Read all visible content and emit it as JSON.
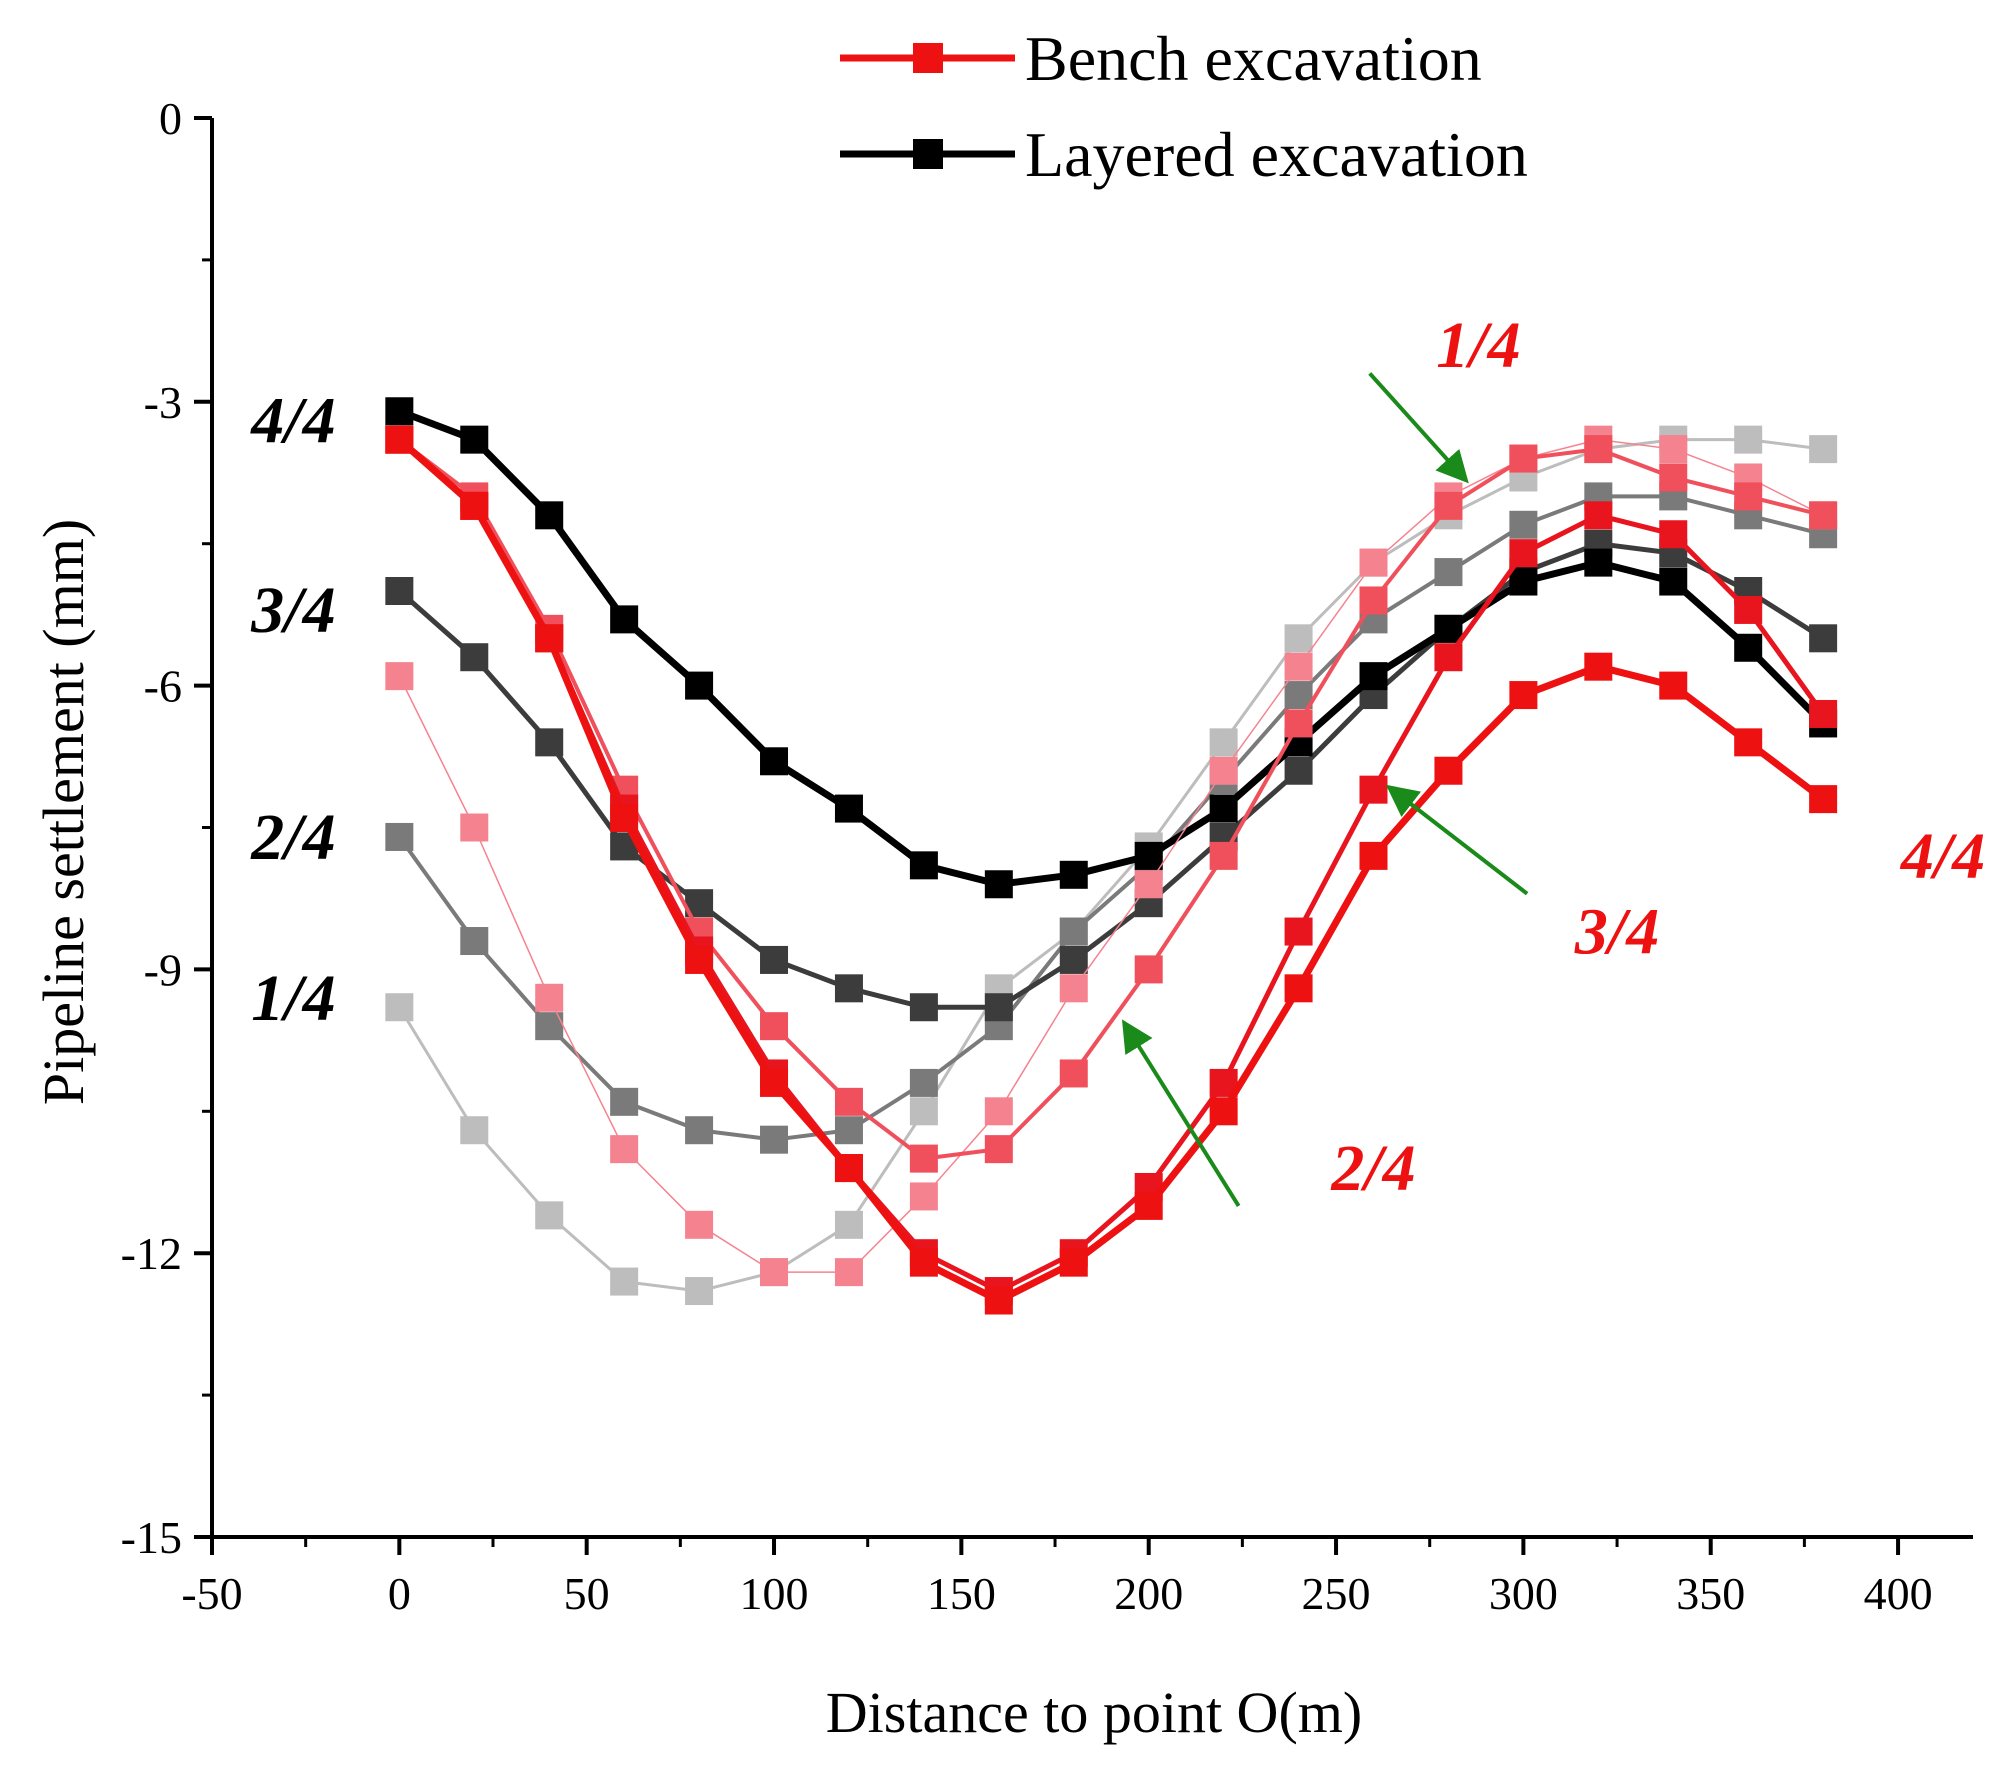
{
  "chart_data": {
    "type": "line",
    "xlabel": "Distance to point O(m)",
    "ylabel": "Pipeline settlement (mm)",
    "xlim": [
      -50,
      420
    ],
    "ylim": [
      -15,
      0
    ],
    "xticks": [
      -50,
      0,
      50,
      100,
      150,
      200,
      250,
      300,
      350,
      400
    ],
    "yticks": [
      0,
      -3,
      -6,
      -9,
      -12,
      -15
    ],
    "x": [
      0,
      20,
      40,
      60,
      80,
      100,
      120,
      140,
      160,
      180,
      200,
      220,
      240,
      260,
      280,
      300,
      320,
      340,
      360,
      380
    ],
    "legend": {
      "placement": "top-right",
      "entries": [
        {
          "label": "Bench excavation",
          "color": "#ee1111"
        },
        {
          "label": "Layered excavation",
          "color": "#000000"
        }
      ]
    },
    "series": [
      {
        "group": "Layered excavation",
        "stage": "1/4",
        "color": "#bdbdbd",
        "values": [
          -9.4,
          -10.7,
          -11.6,
          -12.3,
          -12.4,
          -12.2,
          -11.7,
          -10.5,
          -9.2,
          -8.6,
          -7.7,
          -6.6,
          -5.5,
          -4.7,
          -4.2,
          -3.8,
          -3.5,
          -3.4,
          -3.4,
          -3.5
        ]
      },
      {
        "group": "Layered excavation",
        "stage": "2/4",
        "color": "#7a7a7a",
        "values": [
          -7.6,
          -8.7,
          -9.6,
          -10.4,
          -10.7,
          -10.8,
          -10.7,
          -10.2,
          -9.6,
          -8.6,
          -7.9,
          -7.0,
          -6.1,
          -5.3,
          -4.8,
          -4.3,
          -4.0,
          -4.0,
          -4.2,
          -4.4
        ]
      },
      {
        "group": "Layered excavation",
        "stage": "3/4",
        "color": "#3c3c3c",
        "values": [
          -5.0,
          -5.7,
          -6.6,
          -7.7,
          -8.3,
          -8.9,
          -9.2,
          -9.4,
          -9.4,
          -8.9,
          -8.3,
          -7.6,
          -6.9,
          -6.1,
          -5.4,
          -4.8,
          -4.5,
          -4.6,
          -5.0,
          -5.5
        ]
      },
      {
        "group": "Layered excavation",
        "stage": "4/4",
        "color": "#000000",
        "values": [
          -3.1,
          -3.4,
          -4.2,
          -5.3,
          -6.0,
          -6.8,
          -7.3,
          -7.9,
          -8.1,
          -8.0,
          -7.8,
          -7.3,
          -6.6,
          -5.9,
          -5.4,
          -4.9,
          -4.7,
          -4.9,
          -5.6,
          -6.4
        ]
      },
      {
        "group": "Bench excavation",
        "stage": "1/4",
        "color": "#f5838f",
        "values": [
          -5.9,
          -7.5,
          -9.3,
          -10.9,
          -11.7,
          -12.2,
          -12.2,
          -11.4,
          -10.5,
          -9.2,
          -8.1,
          -6.9,
          -5.8,
          -4.7,
          -4.0,
          -3.6,
          -3.4,
          -3.5,
          -3.8,
          -4.2
        ]
      },
      {
        "group": "Bench excavation",
        "stage": "2/4",
        "color": "#f0505c",
        "values": [
          -3.4,
          -4.0,
          -5.4,
          -7.1,
          -8.6,
          -9.6,
          -10.4,
          -11.0,
          -10.9,
          -10.1,
          -9.0,
          -7.8,
          -6.4,
          -5.1,
          -4.1,
          -3.6,
          -3.5,
          -3.8,
          -4.0,
          -4.2
        ]
      },
      {
        "group": "Bench excavation",
        "stage": "3/4",
        "color": "#e8141e",
        "values": [
          -3.4,
          -4.1,
          -5.5,
          -7.3,
          -8.8,
          -10.1,
          -11.1,
          -12.0,
          -12.4,
          -12.0,
          -11.3,
          -10.2,
          -8.6,
          -7.1,
          -5.7,
          -4.6,
          -4.2,
          -4.4,
          -5.2,
          -6.3
        ]
      },
      {
        "group": "Bench excavation",
        "stage": "4/4",
        "color": "#ee1111",
        "values": [
          -3.4,
          -4.1,
          -5.5,
          -7.4,
          -8.9,
          -10.2,
          -11.1,
          -12.1,
          -12.5,
          -12.1,
          -11.5,
          -10.5,
          -9.2,
          -7.8,
          -6.9,
          -6.1,
          -5.8,
          -6.0,
          -6.6,
          -7.2
        ]
      }
    ],
    "annotations": {
      "layered": [
        {
          "text": "4/4",
          "at": [
            -17,
            -3.2
          ]
        },
        {
          "text": "3/4",
          "at": [
            -17,
            -5.2
          ]
        },
        {
          "text": "2/4",
          "at": [
            -17,
            -7.6
          ]
        },
        {
          "text": "1/4",
          "at": [
            -17,
            -9.3
          ]
        }
      ],
      "bench": [
        {
          "text": "1/4",
          "at": [
            288,
            -2.4
          ]
        },
        {
          "text": "3/4",
          "at": [
            325,
            -8.6
          ]
        },
        {
          "text": "2/4",
          "at": [
            260,
            -11.1
          ]
        },
        {
          "text": "4/4",
          "at": [
            412,
            -7.8
          ]
        }
      ],
      "arrows": [
        {
          "from": [
            259,
            -2.7
          ],
          "to": [
            284,
            -3.8
          ]
        },
        {
          "from": [
            301,
            -8.2
          ],
          "to": [
            265,
            -7.1
          ]
        },
        {
          "from": [
            224,
            -11.5
          ],
          "to": [
            194,
            -9.6
          ]
        }
      ]
    }
  }
}
